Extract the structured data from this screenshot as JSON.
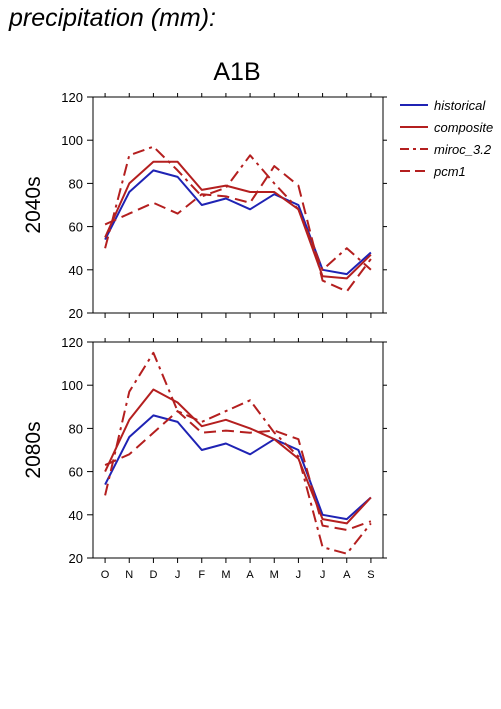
{
  "title": "precipitation (mm):",
  "panel_title": "A1B",
  "colors": {
    "historical": "#1f23b4",
    "projection": "#b41f1f",
    "axis": "#000000"
  },
  "legend": [
    {
      "label": "historical",
      "style": "solid",
      "color": "#1f23b4"
    },
    {
      "label": "composite",
      "style": "solid",
      "color": "#b41f1f"
    },
    {
      "label": "miroc_3.2",
      "style": "dashdot",
      "color": "#b41f1f"
    },
    {
      "label": "pcm1",
      "style": "dashed",
      "color": "#b41f1f"
    }
  ],
  "chart_data": [
    {
      "type": "line",
      "row_label": "2040s",
      "categories": [
        "O",
        "N",
        "D",
        "J",
        "F",
        "M",
        "A",
        "M",
        "J",
        "J",
        "A",
        "S"
      ],
      "ylim": [
        20,
        120
      ],
      "yticks": [
        20,
        40,
        60,
        80,
        100,
        120
      ],
      "series": [
        {
          "name": "historical",
          "style": "solid",
          "values": [
            54,
            76,
            86,
            83,
            70,
            73,
            68,
            75,
            70,
            40,
            38,
            48
          ]
        },
        {
          "name": "composite",
          "style": "solid",
          "values": [
            55,
            80,
            90,
            90,
            77,
            79,
            76,
            76,
            68,
            37,
            36,
            47
          ]
        },
        {
          "name": "miroc_3.2",
          "style": "dashdot",
          "values": [
            50,
            93,
            97,
            86,
            74,
            78,
            93,
            80,
            68,
            40,
            50,
            40
          ]
        },
        {
          "name": "pcm1",
          "style": "dashed",
          "values": [
            61,
            66,
            71,
            66,
            75,
            74,
            71,
            88,
            79,
            35,
            30,
            45
          ]
        }
      ]
    },
    {
      "type": "line",
      "row_label": "2080s",
      "categories": [
        "O",
        "N",
        "D",
        "J",
        "F",
        "M",
        "A",
        "M",
        "J",
        "J",
        "A",
        "S"
      ],
      "ylim": [
        20,
        120
      ],
      "yticks": [
        20,
        40,
        60,
        80,
        100,
        120
      ],
      "series": [
        {
          "name": "historical",
          "style": "solid",
          "values": [
            54,
            76,
            86,
            83,
            70,
            73,
            68,
            75,
            70,
            40,
            38,
            48
          ]
        },
        {
          "name": "composite",
          "style": "solid",
          "values": [
            60,
            84,
            98,
            92,
            81,
            84,
            80,
            75,
            66,
            38,
            36,
            48
          ]
        },
        {
          "name": "miroc_3.2",
          "style": "dashdot",
          "values": [
            49,
            97,
            115,
            88,
            83,
            88,
            93,
            78,
            67,
            25,
            22,
            36
          ]
        },
        {
          "name": "pcm1",
          "style": "dashed",
          "values": [
            63,
            68,
            78,
            88,
            78,
            79,
            78,
            79,
            75,
            35,
            33,
            37
          ]
        }
      ]
    }
  ]
}
